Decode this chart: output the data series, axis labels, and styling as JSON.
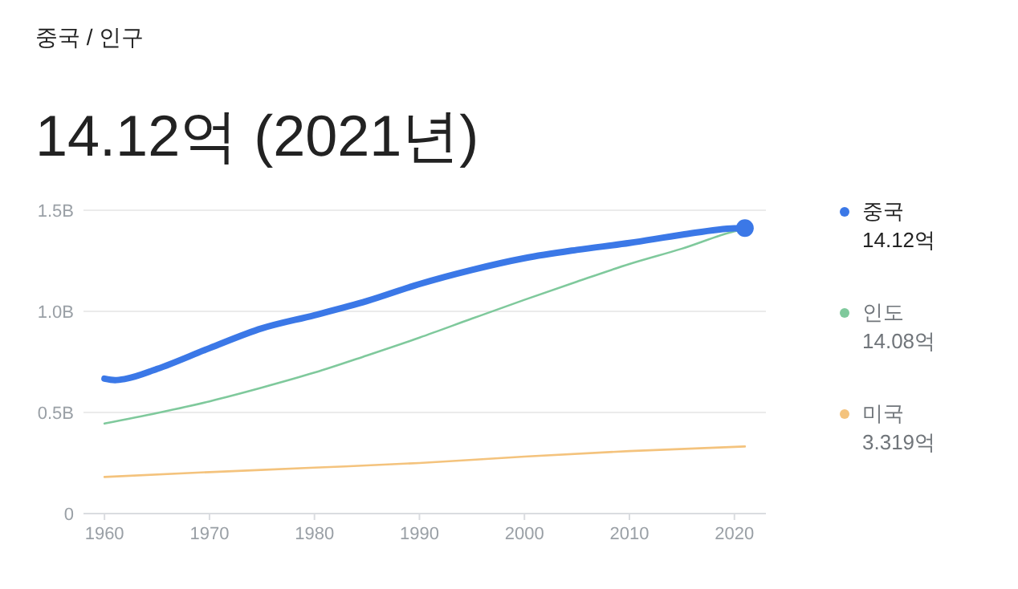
{
  "chart_data": {
    "type": "line",
    "subtitle": "중국 / 인구",
    "title": "14.12억 (2021년)",
    "xlim": [
      1958,
      2023
    ],
    "xticks": [
      1960,
      1970,
      1980,
      1990,
      2000,
      2010,
      2020
    ],
    "ylim": [
      0,
      1.5
    ],
    "yticks": [
      {
        "value": 0,
        "label": "0"
      },
      {
        "value": 0.5,
        "label": "0.5B"
      },
      {
        "value": 1,
        "label": "1.0B"
      },
      {
        "value": 1.5,
        "label": "1.5B"
      }
    ],
    "grid": "y",
    "legend": "right",
    "annotations": [
      "14.12억",
      "14.08억",
      "3.319억"
    ],
    "series": [
      {
        "name": "중국",
        "color": "#3b78e7",
        "x": [
          1960,
          1961,
          1962,
          1965,
          1970,
          1975,
          1980,
          1985,
          1990,
          1995,
          2000,
          2005,
          2010,
          2015,
          2020,
          2021
        ],
        "values": [
          0.667,
          0.66,
          0.666,
          0.715,
          0.818,
          0.916,
          0.981,
          1.051,
          1.135,
          1.205,
          1.263,
          1.304,
          1.338,
          1.379,
          1.411,
          1.412
        ]
      },
      {
        "name": "인도",
        "color": "#7fc99c",
        "x": [
          1960,
          1965,
          1970,
          1975,
          1980,
          1985,
          1990,
          1995,
          2000,
          2005,
          2010,
          2015,
          2020,
          2021
        ],
        "values": [
          0.445,
          0.497,
          0.555,
          0.623,
          0.697,
          0.782,
          0.87,
          0.964,
          1.057,
          1.147,
          1.234,
          1.31,
          1.396,
          1.408
        ]
      },
      {
        "name": "미국",
        "color": "#f4c37d",
        "x": [
          1960,
          1970,
          1980,
          1990,
          2000,
          2010,
          2021
        ],
        "values": [
          0.181,
          0.205,
          0.227,
          0.25,
          0.282,
          0.309,
          0.332
        ]
      }
    ]
  }
}
